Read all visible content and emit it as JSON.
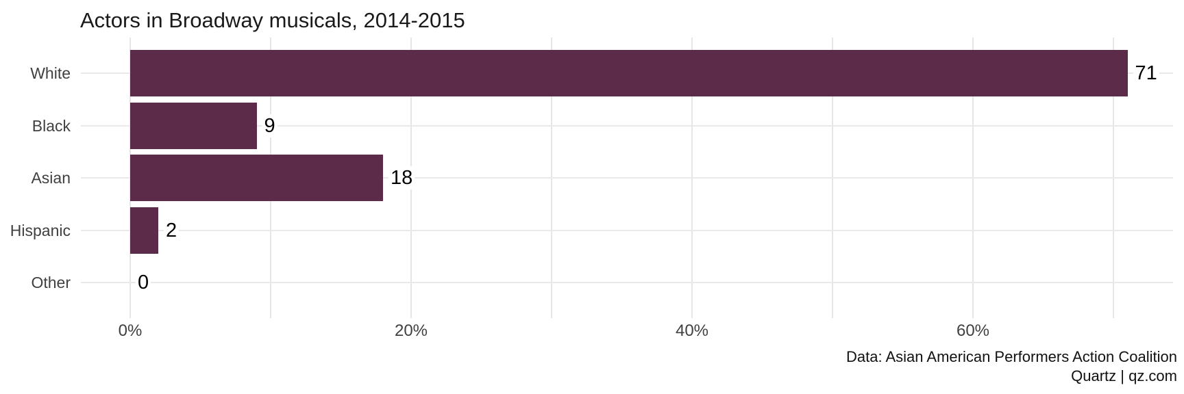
{
  "title": "Actors in Broadway musicals, 2014-2015",
  "source": {
    "line1": "Data: Asian American Performers Action Coalition",
    "line2": "Quartz | qz.com"
  },
  "colors": {
    "bar": "#5c2b4a",
    "grid_vertical": "#e5e5e5",
    "grid_horizontal": "#e9e9e9",
    "category_text": "#404040",
    "tick_text": "#404040",
    "value_text": "#000000",
    "title_text": "#1a1a1a",
    "background": "#ffffff"
  },
  "chart_data": {
    "type": "bar",
    "orientation": "horizontal",
    "title": "Actors in Broadway musicals, 2014-2015",
    "categories": [
      "White",
      "Black",
      "Asian",
      "Hispanic",
      "Other"
    ],
    "values": [
      71,
      9,
      18,
      2,
      0
    ],
    "value_labels": [
      "71",
      "9",
      "18",
      "2",
      "0"
    ],
    "unit": "percent",
    "xlabel": "",
    "ylabel": "",
    "x_tick_values": [
      0,
      20,
      40,
      60
    ],
    "x_tick_labels": [
      "0%",
      "20%",
      "40%",
      "60%"
    ],
    "x_gridline_values": [
      0,
      10,
      20,
      30,
      40,
      50,
      60,
      70
    ],
    "xlim": [
      0,
      74.2
    ],
    "grid": true,
    "legend": false,
    "annotations": [
      "Data: Asian American Performers Action Coalition",
      "Quartz | qz.com"
    ]
  }
}
